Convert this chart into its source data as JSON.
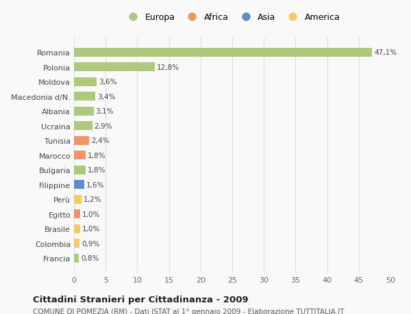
{
  "categories": [
    "Francia",
    "Colombia",
    "Brasile",
    "Egitto",
    "Perù",
    "Filippine",
    "Bulgaria",
    "Marocco",
    "Tunisia",
    "Ucraina",
    "Albania",
    "Macedonia d/N.",
    "Moldova",
    "Polonia",
    "Romania"
  ],
  "values": [
    0.8,
    0.9,
    1.0,
    1.0,
    1.2,
    1.6,
    1.8,
    1.8,
    2.4,
    2.9,
    3.1,
    3.4,
    3.6,
    12.8,
    47.1
  ],
  "labels": [
    "0,8%",
    "0,9%",
    "1,0%",
    "1,0%",
    "1,2%",
    "1,6%",
    "1,8%",
    "1,8%",
    "2,4%",
    "2,9%",
    "3,1%",
    "3,4%",
    "3,6%",
    "12,8%",
    "47,1%"
  ],
  "colors": [
    "#aec97e",
    "#f5c96a",
    "#f5c96a",
    "#f0956a",
    "#f5c96a",
    "#5b8fc9",
    "#aec97e",
    "#f0956a",
    "#f0956a",
    "#aec97e",
    "#aec97e",
    "#aec97e",
    "#aec97e",
    "#aec97e",
    "#aec97e"
  ],
  "legend_labels": [
    "Europa",
    "Africa",
    "Asia",
    "America"
  ],
  "legend_colors": [
    "#aec97e",
    "#f0956a",
    "#5b8fc9",
    "#f5c96a"
  ],
  "title": "Cittadini Stranieri per Cittadinanza - 2009",
  "subtitle": "COMUNE DI POMEZIA (RM) - Dati ISTAT al 1° gennaio 2009 - Elaborazione TUTTITALIA.IT",
  "xlim": [
    0,
    50
  ],
  "xticks": [
    0,
    5,
    10,
    15,
    20,
    25,
    30,
    35,
    40,
    45,
    50
  ],
  "background_color": "#f9f9f9",
  "grid_color": "#dddddd",
  "bar_height": 0.6
}
